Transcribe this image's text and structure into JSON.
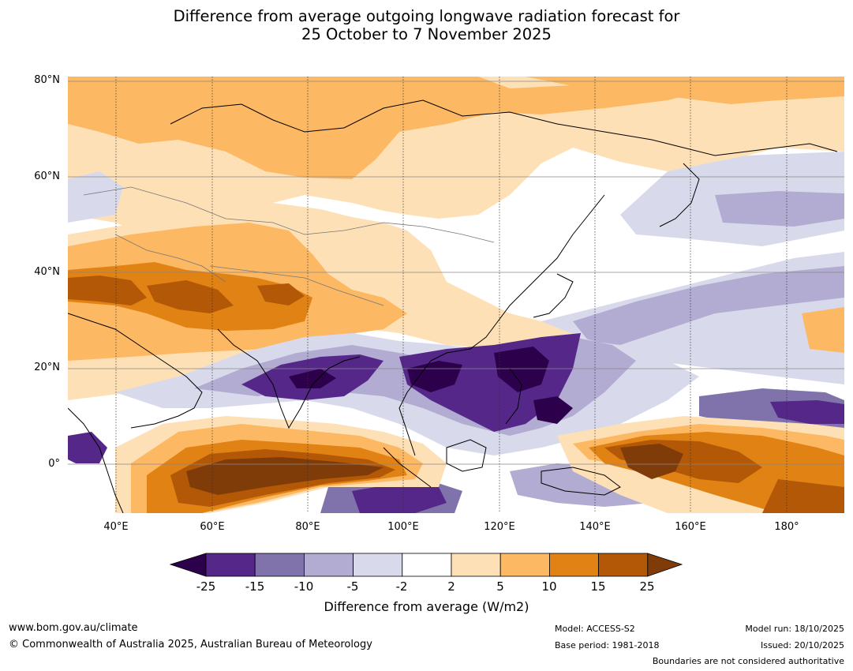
{
  "title": {
    "line1": "Difference from average outgoing longwave radiation forecast for",
    "line2": "25 October to 7 November 2025"
  },
  "map": {
    "lat_labels": [
      "80°N",
      "60°N",
      "40°N",
      "20°N",
      "0°"
    ],
    "lon_labels": [
      "40°E",
      "60°E",
      "80°E",
      "100°E",
      "120°E",
      "140°E",
      "160°E",
      "180°"
    ],
    "lon_range": [
      30,
      192
    ],
    "lat_range": [
      -10,
      81
    ]
  },
  "colorbar": {
    "ticks": [
      "-25",
      "-15",
      "-10",
      "-5",
      "-2",
      "2",
      "5",
      "10",
      "15",
      "25"
    ],
    "colors": {
      "lt_neg25": "#2d004b",
      "neg25_neg15": "#542788",
      "neg15_neg10": "#8073ac",
      "neg10_neg5": "#b2abd2",
      "neg5_neg2": "#d8daeb",
      "neg2_2": "#ffffff",
      "pos2_5": "#fee0b6",
      "pos5_10": "#fdb863",
      "pos10_15": "#e08214",
      "pos15_25": "#b35806",
      "gt_25": "#7f3b08"
    },
    "label": "Difference from average (W/m2)"
  },
  "footer": {
    "website": "www.bom.gov.au/climate",
    "copyright": "© Commonwealth of Australia 2025, Australian Bureau of Meteorology",
    "model": "Model: ACCESS-S2",
    "base_period": "Base period: 1981-2018",
    "model_run": "Model run: 18/10/2025",
    "issued": "Issued: 20/10/2025",
    "disclaimer": "Boundaries are not considered authoritative"
  }
}
